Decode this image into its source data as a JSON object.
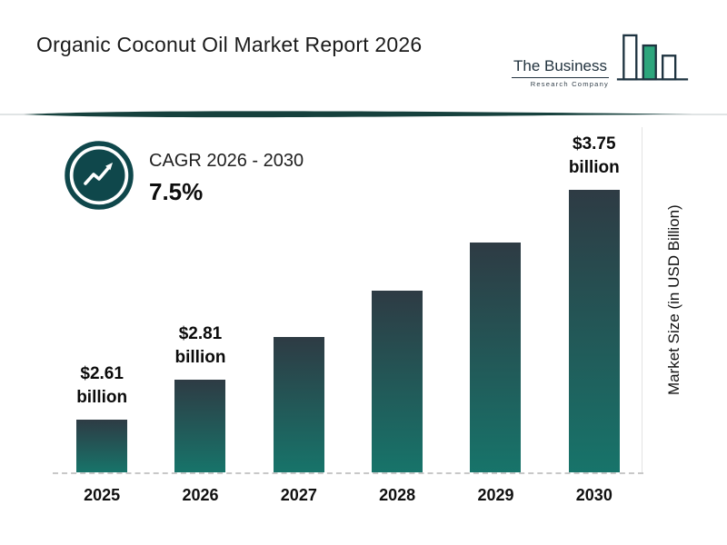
{
  "header": {
    "title": "Organic Coconut Oil Market Report 2026",
    "logo": {
      "name_line": "The Business",
      "sub_line": "Research Company"
    }
  },
  "cagr": {
    "label": "CAGR 2026 - 2030",
    "value": "7.5%"
  },
  "chart_data": {
    "type": "bar",
    "categories": [
      "2025",
      "2026",
      "2027",
      "2028",
      "2029",
      "2030"
    ],
    "values": [
      2.61,
      2.81,
      3.02,
      3.25,
      3.49,
      3.75
    ],
    "bar_labels": [
      {
        "line1": "$2.61",
        "line2": "billion"
      },
      {
        "line1": "$2.81",
        "line2": "billion"
      },
      null,
      null,
      null,
      {
        "line1": "$3.75",
        "line2": "billion"
      }
    ],
    "title": "Organic Coconut Oil Market Report 2026",
    "xlabel": "",
    "ylabel": "Market Size (in USD Billion)",
    "ylim": [
      2.35,
      4.05
    ],
    "grid": false,
    "legend": "none",
    "colors": {
      "bar_top": "#2e3b44",
      "bar_bottom": "#17746a",
      "accent_dark_teal": "#16413d",
      "logo_green": "#2da57c",
      "logo_outline": "#1e3340"
    }
  }
}
